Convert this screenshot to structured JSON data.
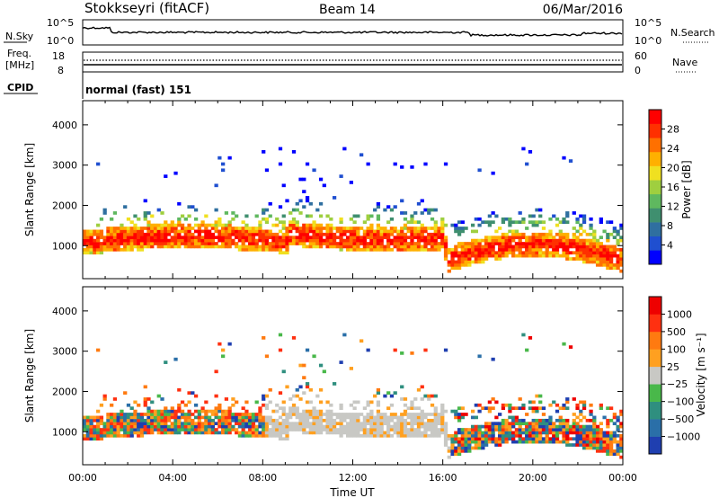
{
  "header": {
    "station": "Stokkseyri (fitACF)",
    "beam": "Beam 14",
    "date": "06/Mar/2016"
  },
  "noise_panel": {
    "left_label": "N.Sky",
    "right_label": "N.Search",
    "left_ticks": [
      "10^5",
      "10^0"
    ],
    "right_ticks": [
      "10^5",
      "10^0"
    ]
  },
  "freq_panel": {
    "left_label_line1": "Freq.",
    "left_label_line2": "[MHz]",
    "right_label": "Nave",
    "left_ticks": [
      "18",
      "8"
    ],
    "right_ticks": [
      "60",
      "0"
    ]
  },
  "cpid_panel": {
    "label": "CPID",
    "mode": "normal (fast) 151"
  },
  "chart_data": [
    {
      "type": "heatmap",
      "quantity": "power",
      "ylabel": "Slant Range [km]",
      "ylim": [
        180,
        4600
      ],
      "yticks": [
        "1000",
        "2000",
        "3000",
        "4000"
      ],
      "xlim": [
        "00:00",
        "24:00"
      ],
      "xticks": [
        "00:00",
        "04:00",
        "08:00",
        "12:00",
        "16:00",
        "20:00",
        "00:00"
      ],
      "colorbar": {
        "label": "Power [dB]",
        "ticks": [
          "28",
          "24",
          "20",
          "16",
          "12",
          "8",
          "4"
        ],
        "colors": [
          "#0000ff",
          "#1f4fd0",
          "#2f6fa0",
          "#3f8f6f",
          "#5fb85f",
          "#9fcf3f",
          "#f0e020",
          "#ffb000",
          "#ff7000",
          "#ff3000",
          "#ff0000"
        ]
      }
    },
    {
      "type": "heatmap",
      "quantity": "velocity",
      "ylabel": "Slant Range [km]",
      "ylim": [
        180,
        4600
      ],
      "yticks": [
        "1000",
        "2000",
        "3000",
        "4000"
      ],
      "xlim": [
        "00:00",
        "24:00"
      ],
      "xticks": [
        "00:00",
        "04:00",
        "08:00",
        "12:00",
        "16:00",
        "20:00",
        "00:00"
      ],
      "xlabel": "Time UT",
      "colorbar": {
        "label": "Velocity [m s⁻¹]",
        "ticks": [
          "1000",
          "500",
          "100",
          "25",
          "−25",
          "−100",
          "−500",
          "−1000"
        ],
        "colors": [
          "#1f3fb0",
          "#2a6fa8",
          "#2f8f7f",
          "#49b84a",
          "#c8c8c4",
          "#ffa020",
          "#ff7a10",
          "#ff3010",
          "#ee0000"
        ]
      }
    }
  ]
}
